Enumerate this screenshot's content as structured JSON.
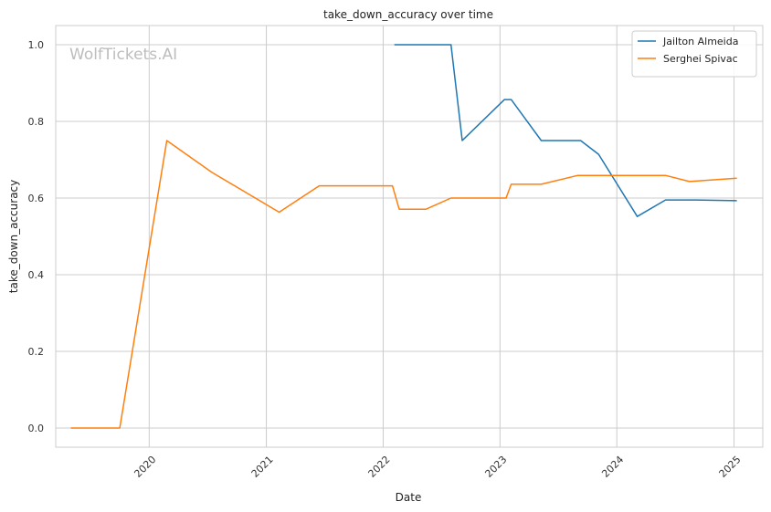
{
  "chart_data": {
    "type": "line",
    "title": "take_down_accuracy over time",
    "xlabel": "Date",
    "ylabel": "take_down_accuracy",
    "xlim": [
      "2019-03-15",
      "2025-04-01"
    ],
    "ylim": [
      -0.05,
      1.05
    ],
    "x_ticks": [
      {
        "date": "2020-01-01",
        "label": "2020"
      },
      {
        "date": "2021-01-01",
        "label": "2021"
      },
      {
        "date": "2022-01-01",
        "label": "2022"
      },
      {
        "date": "2023-01-01",
        "label": "2023"
      },
      {
        "date": "2024-01-01",
        "label": "2024"
      },
      {
        "date": "2025-01-01",
        "label": "2025"
      }
    ],
    "y_ticks": [
      {
        "value": 0.0,
        "label": "0.0"
      },
      {
        "value": 0.2,
        "label": "0.2"
      },
      {
        "value": 0.4,
        "label": "0.4"
      },
      {
        "value": 0.6,
        "label": "0.6"
      },
      {
        "value": 0.8,
        "label": "0.8"
      },
      {
        "value": 1.0,
        "label": "1.0"
      }
    ],
    "grid": true,
    "legend_position": "top-right",
    "watermark": "WolfTickets.AI",
    "series": [
      {
        "name": "Jailton Almeida",
        "color": "#1f77b4",
        "points": [
          {
            "x": "2022-02-05",
            "y": 1.0
          },
          {
            "x": "2022-08-01",
            "y": 1.0
          },
          {
            "x": "2022-09-05",
            "y": 0.75
          },
          {
            "x": "2023-01-15",
            "y": 0.857
          },
          {
            "x": "2023-02-05",
            "y": 0.857
          },
          {
            "x": "2023-05-10",
            "y": 0.75
          },
          {
            "x": "2023-09-10",
            "y": 0.75
          },
          {
            "x": "2023-11-05",
            "y": 0.714
          },
          {
            "x": "2024-03-05",
            "y": 0.552
          },
          {
            "x": "2024-06-01",
            "y": 0.595
          },
          {
            "x": "2024-09-01",
            "y": 0.595
          },
          {
            "x": "2025-01-10",
            "y": 0.593
          }
        ]
      },
      {
        "name": "Serghei Spivac",
        "color": "#ff7f0e",
        "points": [
          {
            "x": "2019-05-01",
            "y": 0.0
          },
          {
            "x": "2019-10-01",
            "y": 0.0
          },
          {
            "x": "2020-02-25",
            "y": 0.75
          },
          {
            "x": "2020-07-15",
            "y": 0.667
          },
          {
            "x": "2021-02-10",
            "y": 0.563
          },
          {
            "x": "2021-06-15",
            "y": 0.632
          },
          {
            "x": "2022-01-30",
            "y": 0.632
          },
          {
            "x": "2022-02-20",
            "y": 0.571
          },
          {
            "x": "2022-05-15",
            "y": 0.571
          },
          {
            "x": "2022-08-01",
            "y": 0.6
          },
          {
            "x": "2023-01-20",
            "y": 0.6
          },
          {
            "x": "2023-02-05",
            "y": 0.636
          },
          {
            "x": "2023-05-10",
            "y": 0.636
          },
          {
            "x": "2023-09-01",
            "y": 0.659
          },
          {
            "x": "2024-06-01",
            "y": 0.659
          },
          {
            "x": "2024-08-15",
            "y": 0.643
          },
          {
            "x": "2025-01-10",
            "y": 0.652
          }
        ]
      }
    ]
  }
}
